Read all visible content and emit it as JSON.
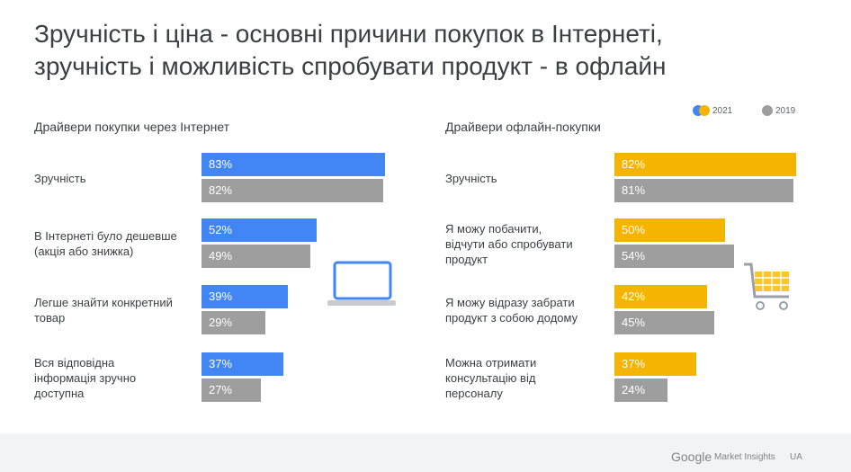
{
  "title": [
    "Зручність і ціна - основні причини покупок в Інтернеті,",
    "зручність і можливість спробувати продукт - в офлайн"
  ],
  "legend": [
    {
      "label": "2021"
    },
    {
      "label": "2019"
    }
  ],
  "chart_data": [
    {
      "type": "bar",
      "orientation": "horizontal",
      "subtitle": "Драйвери покупки через Інтернет",
      "categories": [
        "Зручність",
        "В Інтернеті було дешевше (акція або знижка)",
        "Легше знайти конкретний товар",
        "Вся відповідна інформація зручно доступна"
      ],
      "series": [
        {
          "color": "#4285f4",
          "values": [
            83,
            52,
            39,
            37
          ],
          "value_labels": [
            "83%",
            "52%",
            "39%",
            "37%"
          ]
        },
        {
          "color": "#9e9e9e",
          "values": [
            82,
            49,
            29,
            27
          ],
          "value_labels": [
            "82%",
            "49%",
            "29%",
            "27%"
          ]
        }
      ]
    },
    {
      "type": "bar",
      "orientation": "horizontal",
      "subtitle": "Драйвери офлайн-покупки",
      "categories": [
        "Зручність",
        "Я можу побачити, відчути або спробувати продукт",
        "Я можу відразу забрати продукт з собою додому",
        "Можна отримати консультацію від персоналу"
      ],
      "series": [
        {
          "color": "#f4b400",
          "values": [
            82,
            50,
            42,
            37
          ],
          "value_labels": [
            "82%",
            "50%",
            "42%",
            "37%"
          ]
        },
        {
          "color": "#9e9e9e",
          "values": [
            81,
            54,
            45,
            24
          ],
          "value_labels": [
            "81%",
            "54%",
            "45%",
            "24%"
          ]
        }
      ]
    }
  ],
  "footer": {
    "brand": "Google",
    "product": "Market Insights",
    "region": "UA"
  }
}
